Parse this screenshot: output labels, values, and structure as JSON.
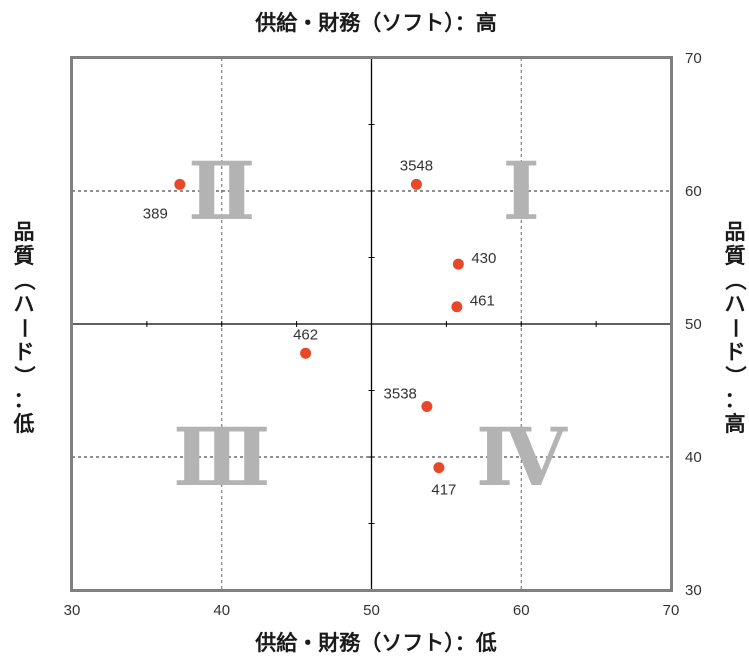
{
  "chart_data": {
    "type": "scatter",
    "title_top": "供給・財務（ソフト）：高",
    "xlabel": "供給・財務（ソフト）：低",
    "ylabel_left": "品質（ハード）：低",
    "ylabel_right": "品質（ハード）：高",
    "xlim": [
      30,
      70
    ],
    "ylim": [
      30,
      70
    ],
    "x_ticks": [
      30,
      40,
      50,
      60,
      70
    ],
    "y_ticks": [
      30,
      40,
      50,
      60,
      70
    ],
    "center": [
      50,
      50
    ],
    "grid": "dashed at 40 and 60",
    "quadrants": [
      {
        "label": "Ⅰ",
        "x": 60,
        "y": 60
      },
      {
        "label": "Ⅱ",
        "x": 40,
        "y": 60
      },
      {
        "label": "Ⅲ",
        "x": 40,
        "y": 40
      },
      {
        "label": "Ⅳ",
        "x": 60,
        "y": 40
      }
    ],
    "points": [
      {
        "label": "389",
        "x": 37.2,
        "y": 60.5,
        "label_pos": "below-left"
      },
      {
        "label": "3548",
        "x": 53.0,
        "y": 60.5,
        "label_pos": "above"
      },
      {
        "label": "430",
        "x": 55.8,
        "y": 54.5,
        "label_pos": "right"
      },
      {
        "label": "461",
        "x": 55.7,
        "y": 51.3,
        "label_pos": "right"
      },
      {
        "label": "462",
        "x": 45.6,
        "y": 47.8,
        "label_pos": "above"
      },
      {
        "label": "3538",
        "x": 53.7,
        "y": 43.8,
        "label_pos": "left"
      },
      {
        "label": "417",
        "x": 54.5,
        "y": 39.2,
        "label_pos": "below"
      }
    ],
    "colors": {
      "point": "#e8472a",
      "frame": "#808080",
      "quadrant_numeral": "#b3b3b3"
    }
  }
}
